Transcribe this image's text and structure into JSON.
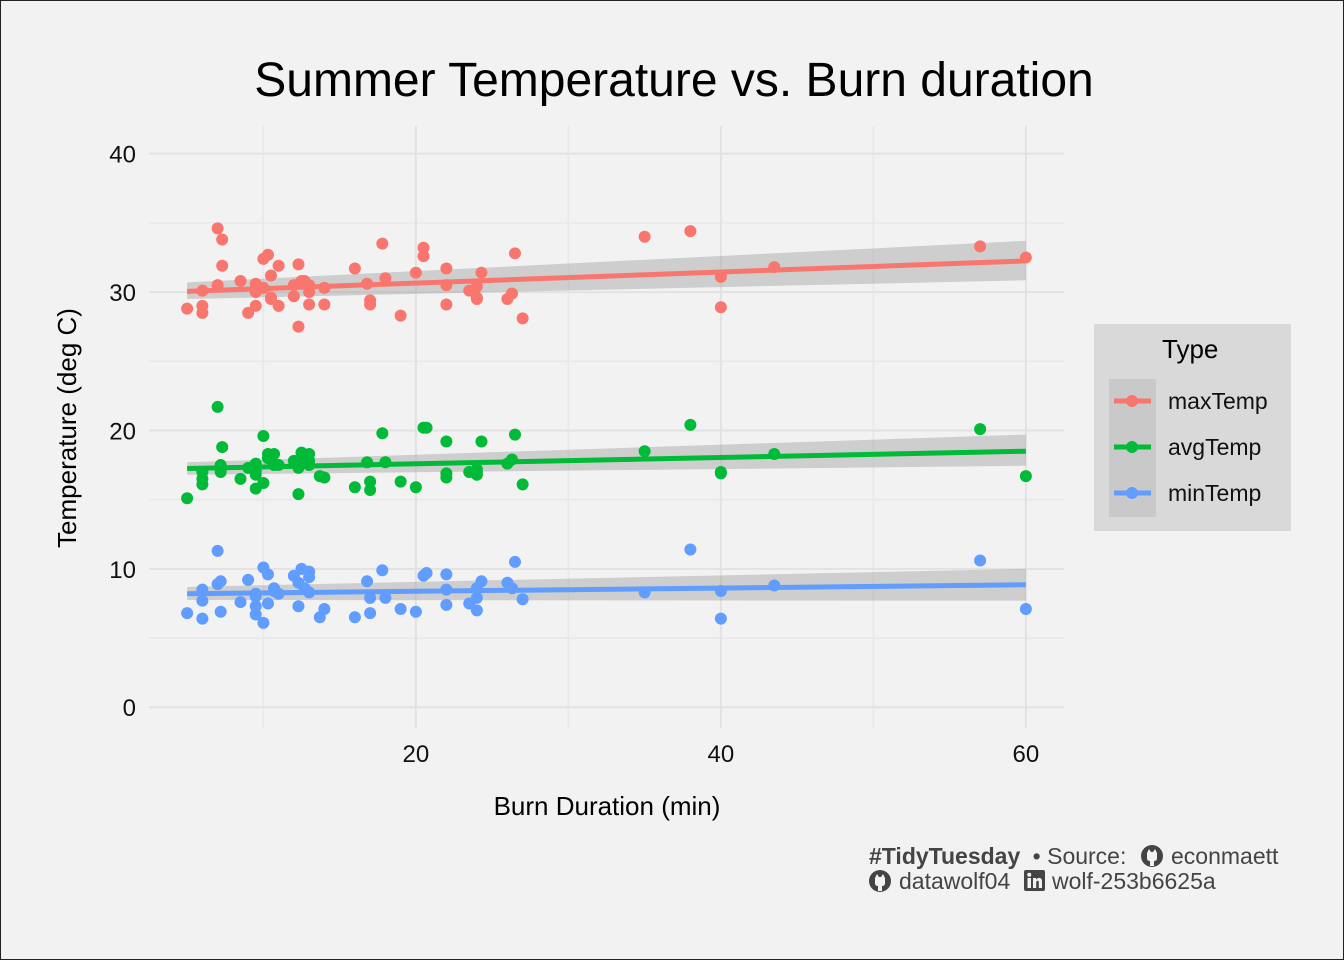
{
  "chart_data": {
    "type": "scatter",
    "title": "Summer Temperature vs. Burn duration",
    "xlabel": "Burn Duration (min)",
    "ylabel": "Temperature (deg C)",
    "xlim": [
      2.5,
      62.5
    ],
    "ylim": [
      -1.5,
      42
    ],
    "x_ticks": [
      20,
      40,
      60
    ],
    "y_ticks": [
      0,
      10,
      20,
      30,
      40
    ],
    "grid": true,
    "legend": {
      "title": "Type",
      "position": "right"
    },
    "series": [
      {
        "name": "maxTemp",
        "color": "#F8766D",
        "points": [
          [
            5,
            28.8
          ],
          [
            6,
            28.5
          ],
          [
            6,
            29
          ],
          [
            6,
            30.1
          ],
          [
            7,
            30.5
          ],
          [
            7,
            34.6
          ],
          [
            7.3,
            33.8
          ],
          [
            7.3,
            31.9
          ],
          [
            8.5,
            30.8
          ],
          [
            9,
            28.5
          ],
          [
            9.5,
            29
          ],
          [
            9.5,
            30
          ],
          [
            9.5,
            30.6
          ],
          [
            10,
            32.4
          ],
          [
            10,
            30.3
          ],
          [
            10.3,
            32.7
          ],
          [
            10.5,
            29.5
          ],
          [
            10.5,
            31.2
          ],
          [
            10.5,
            29.6
          ],
          [
            11,
            31.9
          ],
          [
            11,
            29
          ],
          [
            12,
            29.7
          ],
          [
            12,
            30.5
          ],
          [
            12.3,
            27.5
          ],
          [
            12.3,
            32
          ],
          [
            12.5,
            30.8
          ],
          [
            12.7,
            30.8
          ],
          [
            13,
            30
          ],
          [
            13,
            30.5
          ],
          [
            13,
            29.1
          ],
          [
            14,
            30.3
          ],
          [
            14,
            29.1
          ],
          [
            16,
            31.7
          ],
          [
            16.8,
            30.6
          ],
          [
            17,
            29.4
          ],
          [
            17,
            29.1
          ],
          [
            17.8,
            33.5
          ],
          [
            18,
            31
          ],
          [
            19,
            28.3
          ],
          [
            20,
            31.4
          ],
          [
            20.5,
            32.6
          ],
          [
            20.5,
            33.2
          ],
          [
            22,
            31.7
          ],
          [
            22,
            30.5
          ],
          [
            22,
            29.1
          ],
          [
            23.5,
            30.1
          ],
          [
            24,
            30.4
          ],
          [
            24,
            29.6
          ],
          [
            24,
            29.5
          ],
          [
            24.3,
            31.4
          ],
          [
            26,
            29.5
          ],
          [
            26.3,
            29.9
          ],
          [
            26.5,
            32.8
          ],
          [
            27,
            28.1
          ],
          [
            35,
            34
          ],
          [
            38,
            34.4
          ],
          [
            40,
            31.1
          ],
          [
            40,
            28.9
          ],
          [
            43.5,
            31.8
          ],
          [
            57,
            33.3
          ],
          [
            60,
            32.5
          ]
        ],
        "fit": {
          "x": [
            5,
            60
          ],
          "y": [
            30.05,
            32.25
          ],
          "se_lower": [
            29.5,
            30.85
          ],
          "se_upper": [
            30.7,
            33.7
          ]
        }
      },
      {
        "name": "avgTemp",
        "color": "#00BA38",
        "points": [
          [
            5,
            15.1
          ],
          [
            6,
            16.1
          ],
          [
            6,
            16.5
          ],
          [
            6,
            17
          ],
          [
            7,
            21.7
          ],
          [
            7.2,
            17.5
          ],
          [
            7.2,
            17
          ],
          [
            7.3,
            18.8
          ],
          [
            8.5,
            16.5
          ],
          [
            9,
            17.3
          ],
          [
            9.5,
            17.1
          ],
          [
            9.5,
            17.6
          ],
          [
            9.5,
            15.8
          ],
          [
            9.5,
            16.8
          ],
          [
            10,
            19.6
          ],
          [
            10,
            16.2
          ],
          [
            10.3,
            18.3
          ],
          [
            10.3,
            18
          ],
          [
            10.7,
            18.3
          ],
          [
            10.7,
            17.5
          ],
          [
            11,
            17.5
          ],
          [
            12,
            17.8
          ],
          [
            12.3,
            15.4
          ],
          [
            12.3,
            17.3
          ],
          [
            12.5,
            18.4
          ],
          [
            12.7,
            18
          ],
          [
            13,
            17.5
          ],
          [
            13,
            18.3
          ],
          [
            13,
            17.8
          ],
          [
            13.7,
            16.7
          ],
          [
            14,
            16.6
          ],
          [
            16,
            15.9
          ],
          [
            16.8,
            17.7
          ],
          [
            17,
            16.3
          ],
          [
            17,
            15.7
          ],
          [
            17.8,
            19.8
          ],
          [
            18,
            17.7
          ],
          [
            19,
            16.3
          ],
          [
            20,
            15.9
          ],
          [
            20.5,
            20.2
          ],
          [
            20.7,
            20.2
          ],
          [
            22,
            19.2
          ],
          [
            22,
            16.9
          ],
          [
            22,
            16.6
          ],
          [
            23.5,
            17
          ],
          [
            24,
            17
          ],
          [
            24,
            17.2
          ],
          [
            24,
            16.8
          ],
          [
            24.3,
            19.2
          ],
          [
            26,
            17.6
          ],
          [
            26.3,
            17.9
          ],
          [
            26.5,
            19.7
          ],
          [
            27,
            16.1
          ],
          [
            35,
            18.5
          ],
          [
            38,
            20.4
          ],
          [
            40,
            17
          ],
          [
            40,
            16.9
          ],
          [
            43.5,
            18.3
          ],
          [
            57,
            20.1
          ],
          [
            60,
            16.7
          ]
        ],
        "fit": {
          "x": [
            5,
            60
          ],
          "y": [
            17.25,
            18.5
          ],
          "se_lower": [
            16.8,
            17.45
          ],
          "se_upper": [
            17.7,
            19.7
          ]
        }
      },
      {
        "name": "minTemp",
        "color": "#619CFF",
        "points": [
          [
            5,
            6.8
          ],
          [
            6,
            6.4
          ],
          [
            6,
            8.5
          ],
          [
            6,
            7.7
          ],
          [
            7,
            11.3
          ],
          [
            7,
            8.9
          ],
          [
            7.2,
            9.1
          ],
          [
            7.2,
            6.9
          ],
          [
            8.5,
            7.6
          ],
          [
            9,
            9.2
          ],
          [
            9.5,
            7.3
          ],
          [
            9.5,
            8
          ],
          [
            9.5,
            6.7
          ],
          [
            9.5,
            8.2
          ],
          [
            10,
            10.1
          ],
          [
            10,
            6.1
          ],
          [
            10.3,
            9.6
          ],
          [
            10.3,
            7.5
          ],
          [
            10.7,
            8.6
          ],
          [
            10.7,
            8.4
          ],
          [
            11,
            8.2
          ],
          [
            12,
            9.5
          ],
          [
            12.3,
            7.3
          ],
          [
            12.3,
            9
          ],
          [
            12.5,
            10
          ],
          [
            12.7,
            8.6
          ],
          [
            13,
            8.3
          ],
          [
            13,
            9.8
          ],
          [
            13,
            9.4
          ],
          [
            13.7,
            6.5
          ],
          [
            14,
            7.1
          ],
          [
            16,
            6.5
          ],
          [
            16.8,
            9.1
          ],
          [
            17,
            7.9
          ],
          [
            17,
            6.8
          ],
          [
            17.8,
            9.9
          ],
          [
            18,
            7.9
          ],
          [
            19,
            7.1
          ],
          [
            20,
            6.9
          ],
          [
            20.5,
            9.5
          ],
          [
            20.7,
            9.7
          ],
          [
            22,
            9.6
          ],
          [
            22,
            8.5
          ],
          [
            22,
            7.4
          ],
          [
            23.5,
            7.5
          ],
          [
            24,
            8.6
          ],
          [
            24,
            7.9
          ],
          [
            24,
            7
          ],
          [
            24.3,
            9.1
          ],
          [
            26,
            9
          ],
          [
            26.3,
            8.6
          ],
          [
            26.5,
            10.5
          ],
          [
            27,
            7.8
          ],
          [
            35,
            8.3
          ],
          [
            38,
            11.4
          ],
          [
            40,
            8.4
          ],
          [
            40,
            6.4
          ],
          [
            43.5,
            8.8
          ],
          [
            57,
            10.6
          ],
          [
            60,
            7.1
          ]
        ],
        "fit": {
          "x": [
            5,
            60
          ],
          "y": [
            8.2,
            8.85
          ],
          "se_lower": [
            7.75,
            7.7
          ],
          "se_upper": [
            8.7,
            10.0
          ]
        }
      }
    ]
  },
  "caption": {
    "hashtag": "#TidyTuesday",
    "source_prefix": "• Source:",
    "source_handle": "econmaett",
    "author_github": "datawolf04",
    "author_linkedin": "wolf-253b6625a"
  },
  "icons": [
    "github-icon",
    "linkedin-icon"
  ]
}
